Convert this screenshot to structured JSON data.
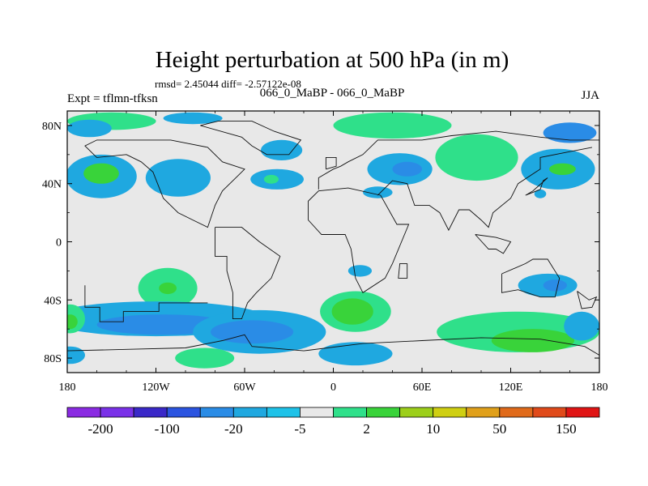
{
  "chart_data": {
    "type": "contour_map",
    "title": "Height perturbation at 500 hPa (in m)",
    "stats_line": "rmsd= 2.45044 diff= -2.57122e-08",
    "left_label": "Expt = tflmn-tfksn",
    "center_label": "066_0_MaBP - 066_0_MaBP",
    "right_label": "JJA",
    "xlim": [
      -180,
      180
    ],
    "ylim": [
      -90,
      90
    ],
    "x_ticks": [
      {
        "value": -180,
        "label": "180"
      },
      {
        "value": -120,
        "label": "120W"
      },
      {
        "value": -60,
        "label": "60W"
      },
      {
        "value": 0,
        "label": "0"
      },
      {
        "value": 60,
        "label": "60E"
      },
      {
        "value": 120,
        "label": "120E"
      },
      {
        "value": 180,
        "label": "180"
      }
    ],
    "y_ticks": [
      {
        "value": 80,
        "label": "80N"
      },
      {
        "value": 40,
        "label": "40N"
      },
      {
        "value": 0,
        "label": "0"
      },
      {
        "value": -40,
        "label": "40S"
      },
      {
        "value": -80,
        "label": "80S"
      }
    ],
    "colorbar": {
      "colors": [
        "#8a2be2",
        "#7a31e8",
        "#3a28c8",
        "#2b54e0",
        "#2a8ce6",
        "#1fa8e0",
        "#1ec2e8",
        "#e8e8e8",
        "#2fe08a",
        "#39d33a",
        "#9ccf1a",
        "#cfcf12",
        "#e0a01a",
        "#e06a1a",
        "#e04a1a",
        "#e01414"
      ],
      "labels": [
        {
          "boundary": 1,
          "text": "-200"
        },
        {
          "boundary": 3,
          "text": "-100"
        },
        {
          "boundary": 5,
          "text": "-20"
        },
        {
          "boundary": 7,
          "text": "-5"
        },
        {
          "boundary": 9,
          "text": "2"
        },
        {
          "boundary": 11,
          "text": "10"
        },
        {
          "boundary": 13,
          "text": "50"
        },
        {
          "boundary": 15,
          "text": "150"
        }
      ]
    },
    "level_colors": {
      "neg_light": "#1fa8e0",
      "neg_mid": "#2a8ce6",
      "pos_light": "#2fe08a",
      "pos_mid": "#39d33a",
      "neutral": "#e8e8e8"
    },
    "regions": [
      {
        "name": "n-pacific-low",
        "level": "neg_light",
        "lon": -157,
        "lat": 45,
        "rlon": 24,
        "rlat": 15
      },
      {
        "name": "n-pacific-low-core",
        "level": "pos_mid",
        "lon": -157,
        "lat": 47,
        "rlon": 12,
        "rlat": 7
      },
      {
        "name": "arctic-high-west",
        "level": "pos_light",
        "lon": -150,
        "lat": 83,
        "rlon": 30,
        "rlat": 6
      },
      {
        "name": "arctic-low-west",
        "level": "neg_light",
        "lon": -165,
        "lat": 78,
        "rlon": 15,
        "rlat": 6
      },
      {
        "name": "n-america-low",
        "level": "neg_light",
        "lon": -105,
        "lat": 44,
        "rlon": 22,
        "rlat": 13
      },
      {
        "name": "n-canada-low",
        "level": "neg_light",
        "lon": -95,
        "lat": 85,
        "rlon": 20,
        "rlat": 4
      },
      {
        "name": "greenland-low",
        "level": "neg_light",
        "lon": -35,
        "lat": 63,
        "rlon": 14,
        "rlat": 7
      },
      {
        "name": "n-atlantic-low",
        "level": "neg_light",
        "lon": -38,
        "lat": 43,
        "rlon": 18,
        "rlat": 7
      },
      {
        "name": "n-atlantic-low-core",
        "level": "pos_light",
        "lon": -42,
        "lat": 43,
        "rlon": 5,
        "rlat": 3
      },
      {
        "name": "arctic-high-east",
        "level": "pos_light",
        "lon": 40,
        "lat": 80,
        "rlon": 40,
        "rlat": 9
      },
      {
        "name": "europe-low",
        "level": "neg_light",
        "lon": 45,
        "lat": 50,
        "rlon": 22,
        "rlat": 11
      },
      {
        "name": "europe-low-core",
        "level": "neg_mid",
        "lon": 50,
        "lat": 50,
        "rlon": 10,
        "rlat": 5
      },
      {
        "name": "asia-high",
        "level": "pos_light",
        "lon": 97,
        "lat": 58,
        "rlon": 28,
        "rlat": 16
      },
      {
        "name": "east-asia-low",
        "level": "neg_light",
        "lon": 152,
        "lat": 50,
        "rlon": 25,
        "rlat": 14
      },
      {
        "name": "east-asia-low-mid",
        "level": "neg_mid",
        "lon": 160,
        "lat": 75,
        "rlon": 18,
        "rlat": 7
      },
      {
        "name": "east-asia-core",
        "level": "pos_mid",
        "lon": 155,
        "lat": 50,
        "rlon": 9,
        "rlat": 4
      },
      {
        "name": "mediterranean-low",
        "level": "neg_light",
        "lon": 30,
        "lat": 34,
        "rlon": 10,
        "rlat": 4
      },
      {
        "name": "tropical-pacific-low",
        "level": "neg_light",
        "lon": 140,
        "lat": 33,
        "rlon": 4,
        "rlat": 3
      },
      {
        "name": "se-pacific-high",
        "level": "pos_light",
        "lon": -112,
        "lat": -32,
        "rlon": 20,
        "rlat": 14
      },
      {
        "name": "se-pacific-high-core",
        "level": "pos_mid",
        "lon": -112,
        "lat": -32,
        "rlon": 6,
        "rlat": 4
      },
      {
        "name": "s-pacific-low",
        "level": "neg_light",
        "lon": -120,
        "lat": -53,
        "rlon": 75,
        "rlat": 12
      },
      {
        "name": "s-pacific-low-mid",
        "level": "neg_mid",
        "lon": -115,
        "lat": -57,
        "rlon": 45,
        "rlat": 7
      },
      {
        "name": "s-atlantic-low",
        "level": "neg_light",
        "lon": -50,
        "lat": -62,
        "rlon": 45,
        "rlat": 15
      },
      {
        "name": "s-atlantic-low-mid",
        "level": "neg_mid",
        "lon": -55,
        "lat": -62,
        "rlon": 28,
        "rlat": 8
      },
      {
        "name": "s-atlantic-high",
        "level": "pos_light",
        "lon": 15,
        "lat": -48,
        "rlon": 24,
        "rlat": 14
      },
      {
        "name": "s-atlantic-high-core",
        "level": "pos_mid",
        "lon": 13,
        "lat": -48,
        "rlon": 14,
        "rlat": 9
      },
      {
        "name": "s-africa-low",
        "level": "neg_light",
        "lon": 18,
        "lat": -20,
        "rlon": 8,
        "rlat": 4
      },
      {
        "name": "antarctic-pacific-high",
        "level": "pos_light",
        "lon": -87,
        "lat": -80,
        "rlon": 20,
        "rlat": 7
      },
      {
        "name": "antarctic-atlantic-low",
        "level": "neg_light",
        "lon": 15,
        "lat": -77,
        "rlon": 25,
        "rlat": 8
      },
      {
        "name": "s-indian-high",
        "level": "pos_light",
        "lon": 125,
        "lat": -62,
        "rlon": 55,
        "rlat": 14
      },
      {
        "name": "s-indian-high-core",
        "level": "pos_mid",
        "lon": 135,
        "lat": -68,
        "rlon": 28,
        "rlat": 8
      },
      {
        "name": "australia-low",
        "level": "neg_light",
        "lon": 145,
        "lat": -30,
        "rlon": 20,
        "rlat": 8
      },
      {
        "name": "australia-low-core",
        "level": "neg_mid",
        "lon": 150,
        "lat": -30,
        "rlon": 8,
        "rlat": 4
      },
      {
        "name": "sw-pacific-high",
        "level": "pos_light",
        "lon": -178,
        "lat": -53,
        "rlon": 10,
        "rlat": 10
      },
      {
        "name": "sw-pacific-high-core",
        "level": "pos_mid",
        "lon": -178,
        "lat": -55,
        "rlon": 5,
        "rlat": 5
      },
      {
        "name": "sw-pacific-low",
        "level": "neg_light",
        "lon": -178,
        "lat": -78,
        "rlon": 10,
        "rlat": 6
      },
      {
        "name": "east-indian-low",
        "level": "neg_light",
        "lon": 168,
        "lat": -58,
        "rlon": 12,
        "rlat": 10
      }
    ],
    "coastlines": [
      [
        [
          -168,
          -30
        ],
        [
          -168,
          -45
        ],
        [
          -158,
          -45
        ],
        [
          -158,
          -55
        ],
        [
          -142,
          -55
        ],
        [
          -142,
          -48
        ],
        [
          -118,
          -48
        ],
        [
          -118,
          -42
        ],
        [
          -85,
          -42
        ]
      ],
      [
        [
          -80,
          10
        ],
        [
          -80,
          -10
        ],
        [
          -72,
          -10
        ],
        [
          -72,
          -20
        ],
        [
          -68,
          -35
        ],
        [
          -68,
          -53
        ],
        [
          -62,
          -53
        ],
        [
          -58,
          -42
        ],
        [
          -52,
          -35
        ],
        [
          -42,
          -25
        ],
        [
          -36,
          -10
        ],
        [
          -50,
          0
        ],
        [
          -62,
          10
        ],
        [
          -75,
          10
        ],
        [
          -80,
          10
        ]
      ],
      [
        [
          -90,
          80
        ],
        [
          -78,
          83
        ],
        [
          -55,
          83
        ],
        [
          -40,
          76
        ],
        [
          -22,
          70
        ],
        [
          -30,
          60
        ],
        [
          -45,
          60
        ],
        [
          -55,
          66
        ],
        [
          -62,
          72
        ],
        [
          -90,
          80
        ]
      ],
      [
        [
          -140,
          60
        ],
        [
          -130,
          55
        ],
        [
          -122,
          48
        ],
        [
          -115,
          30
        ],
        [
          -105,
          20
        ],
        [
          -95,
          15
        ],
        [
          -85,
          10
        ],
        [
          -80,
          25
        ],
        [
          -75,
          35
        ],
        [
          -65,
          45
        ],
        [
          -60,
          50
        ],
        [
          -75,
          55
        ],
        [
          -85,
          65
        ],
        [
          -110,
          70
        ],
        [
          -140,
          70
        ],
        [
          -160,
          70
        ],
        [
          -168,
          66
        ],
        [
          -160,
          58
        ],
        [
          -140,
          60
        ]
      ],
      [
        [
          -17,
          15
        ],
        [
          -17,
          28
        ],
        [
          -10,
          35
        ],
        [
          10,
          37
        ],
        [
          32,
          32
        ],
        [
          43,
          12
        ],
        [
          51,
          12
        ],
        [
          40,
          -15
        ],
        [
          35,
          -25
        ],
        [
          20,
          -35
        ],
        [
          15,
          -25
        ],
        [
          12,
          -5
        ],
        [
          8,
          5
        ],
        [
          -8,
          5
        ],
        [
          -17,
          15
        ]
      ],
      [
        [
          -10,
          36
        ],
        [
          -10,
          44
        ],
        [
          0,
          50
        ],
        [
          5,
          52
        ],
        [
          10,
          55
        ],
        [
          20,
          60
        ],
        [
          30,
          70
        ],
        [
          60,
          70
        ],
        [
          80,
          73
        ],
        [
          110,
          76
        ],
        [
          140,
          72
        ],
        [
          160,
          70
        ],
        [
          180,
          70
        ]
      ],
      [
        [
          30,
          32
        ],
        [
          40,
          42
        ],
        [
          50,
          40
        ],
        [
          55,
          25
        ],
        [
          65,
          25
        ],
        [
          72,
          20
        ],
        [
          78,
          8
        ],
        [
          85,
          22
        ],
        [
          92,
          22
        ],
        [
          100,
          15
        ],
        [
          105,
          10
        ],
        [
          108,
          20
        ],
        [
          120,
          30
        ],
        [
          125,
          40
        ],
        [
          140,
          50
        ],
        [
          140,
          58
        ],
        [
          160,
          62
        ],
        [
          175,
          65
        ]
      ],
      [
        [
          114,
          -22
        ],
        [
          114,
          -35
        ],
        [
          125,
          -33
        ],
        [
          140,
          -38
        ],
        [
          150,
          -38
        ],
        [
          153,
          -25
        ],
        [
          145,
          -12
        ],
        [
          135,
          -12
        ],
        [
          130,
          -15
        ],
        [
          114,
          -22
        ]
      ],
      [
        [
          -180,
          -75
        ],
        [
          -140,
          -74
        ],
        [
          -100,
          -73
        ],
        [
          -75,
          -68
        ],
        [
          -60,
          -64
        ],
        [
          -55,
          -72
        ],
        [
          -20,
          -75
        ],
        [
          20,
          -70
        ],
        [
          60,
          -68
        ],
        [
          100,
          -66
        ],
        [
          140,
          -67
        ],
        [
          170,
          -72
        ],
        [
          180,
          -78
        ]
      ],
      [
        [
          165,
          -34
        ],
        [
          173,
          -40
        ],
        [
          178,
          -38
        ],
        [
          175,
          -45
        ],
        [
          168,
          -46
        ],
        [
          165,
          -34
        ]
      ],
      [
        [
          140,
          36
        ],
        [
          142,
          42
        ],
        [
          145,
          44
        ],
        [
          135,
          35
        ],
        [
          130,
          32
        ],
        [
          140,
          36
        ]
      ],
      [
        [
          -5,
          50
        ],
        [
          -5,
          58
        ],
        [
          2,
          58
        ],
        [
          2,
          52
        ],
        [
          -5,
          50
        ]
      ],
      [
        [
          96,
          5
        ],
        [
          105,
          -5
        ],
        [
          110,
          -5
        ],
        [
          115,
          -8
        ],
        [
          120,
          0
        ],
        [
          110,
          3
        ],
        [
          96,
          5
        ]
      ],
      [
        [
          50,
          -15
        ],
        [
          50,
          -25
        ],
        [
          44,
          -25
        ],
        [
          45,
          -15
        ],
        [
          50,
          -15
        ]
      ]
    ]
  }
}
